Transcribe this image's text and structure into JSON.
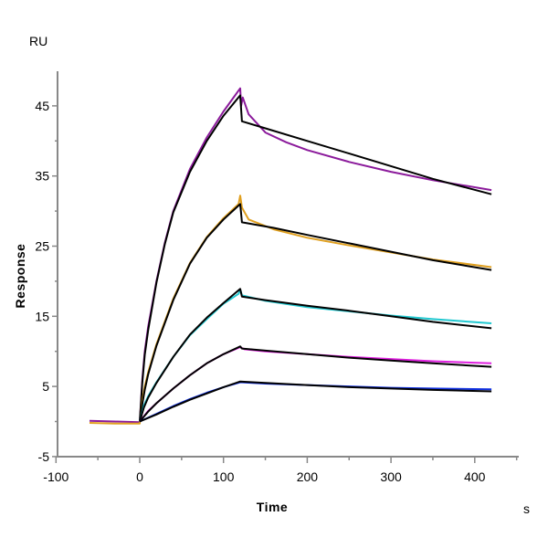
{
  "chart_data": {
    "type": "line",
    "title": "",
    "xlabel": "Time",
    "ylabel": "Response",
    "x_unit": "s",
    "y_unit": "RU",
    "xlim": [
      -100,
      450
    ],
    "ylim": [
      -5,
      50
    ],
    "x_ticks": [
      -100,
      0,
      100,
      200,
      300,
      400
    ],
    "y_ticks": [
      -5,
      5,
      15,
      25,
      35,
      45
    ],
    "grid": false,
    "legend": "none",
    "series": [
      {
        "role": "data",
        "color": "#8b1a9b",
        "points": [
          [
            -60,
            0.1
          ],
          [
            -30,
            0.0
          ],
          [
            0,
            -0.1
          ],
          [
            3,
            6
          ],
          [
            6,
            10
          ],
          [
            10,
            13.5
          ],
          [
            20,
            20
          ],
          [
            30,
            25.5
          ],
          [
            40,
            30
          ],
          [
            60,
            36
          ],
          [
            80,
            40.5
          ],
          [
            100,
            44.2
          ],
          [
            120,
            47.5
          ],
          [
            121,
            45
          ],
          [
            123,
            46.2
          ],
          [
            130,
            43.8
          ],
          [
            150,
            41.2
          ],
          [
            175,
            39.8
          ],
          [
            200,
            38.7
          ],
          [
            250,
            37.0
          ],
          [
            300,
            35.6
          ],
          [
            350,
            34.4
          ],
          [
            420,
            33.0
          ]
        ]
      },
      {
        "role": "fit",
        "color": "#000000",
        "points": [
          [
            0,
            0
          ],
          [
            3,
            5.5
          ],
          [
            6,
            9.5
          ],
          [
            10,
            13
          ],
          [
            20,
            19.8
          ],
          [
            30,
            25.3
          ],
          [
            40,
            29.8
          ],
          [
            60,
            35.6
          ],
          [
            80,
            40
          ],
          [
            100,
            43.6
          ],
          [
            120,
            46.5
          ],
          [
            122,
            42.8
          ],
          [
            150,
            41.8
          ],
          [
            200,
            40.0
          ],
          [
            250,
            38.2
          ],
          [
            300,
            36.4
          ],
          [
            350,
            34.6
          ],
          [
            420,
            32.4
          ]
        ]
      },
      {
        "role": "data",
        "color": "#e0a020",
        "points": [
          [
            -60,
            -0.2
          ],
          [
            -30,
            -0.3
          ],
          [
            0,
            -0.3
          ],
          [
            3,
            3
          ],
          [
            6,
            5
          ],
          [
            10,
            7
          ],
          [
            20,
            11
          ],
          [
            40,
            17.5
          ],
          [
            60,
            22.6
          ],
          [
            80,
            26.3
          ],
          [
            100,
            29
          ],
          [
            118,
            31
          ],
          [
            120,
            32.2
          ],
          [
            122,
            30.5
          ],
          [
            130,
            28.8
          ],
          [
            160,
            27.4
          ],
          [
            200,
            26.2
          ],
          [
            250,
            25.1
          ],
          [
            300,
            24.1
          ],
          [
            350,
            23.1
          ],
          [
            420,
            22.0
          ]
        ]
      },
      {
        "role": "fit",
        "color": "#000000",
        "points": [
          [
            0,
            0
          ],
          [
            3,
            2.5
          ],
          [
            6,
            4.5
          ],
          [
            10,
            6.7
          ],
          [
            20,
            10.8
          ],
          [
            40,
            17.3
          ],
          [
            60,
            22.5
          ],
          [
            80,
            26.2
          ],
          [
            100,
            28.8
          ],
          [
            120,
            31
          ],
          [
            122,
            28.4
          ],
          [
            160,
            27.6
          ],
          [
            200,
            26.6
          ],
          [
            250,
            25.4
          ],
          [
            300,
            24.2
          ],
          [
            350,
            23.0
          ],
          [
            420,
            21.6
          ]
        ]
      },
      {
        "role": "data",
        "color": "#20c8d0",
        "points": [
          [
            0,
            0
          ],
          [
            5,
            2.3
          ],
          [
            10,
            3.6
          ],
          [
            20,
            5.6
          ],
          [
            40,
            9.2
          ],
          [
            60,
            12.3
          ],
          [
            80,
            14.6
          ],
          [
            100,
            16.8
          ],
          [
            118,
            18.2
          ],
          [
            120,
            18.8
          ],
          [
            122,
            18
          ],
          [
            150,
            17.2
          ],
          [
            200,
            16.3
          ],
          [
            250,
            15.7
          ],
          [
            300,
            15.1
          ],
          [
            350,
            14.6
          ],
          [
            420,
            14.0
          ]
        ]
      },
      {
        "role": "fit",
        "color": "#000000",
        "points": [
          [
            0,
            0
          ],
          [
            5,
            2
          ],
          [
            10,
            3.4
          ],
          [
            20,
            5.5
          ],
          [
            40,
            9.2
          ],
          [
            60,
            12.4
          ],
          [
            80,
            14.8
          ],
          [
            100,
            16.9
          ],
          [
            120,
            18.9
          ],
          [
            122,
            17.8
          ],
          [
            150,
            17.3
          ],
          [
            200,
            16.5
          ],
          [
            250,
            15.8
          ],
          [
            300,
            15.0
          ],
          [
            350,
            14.2
          ],
          [
            420,
            13.3
          ]
        ]
      },
      {
        "role": "data",
        "color": "#e020e0",
        "points": [
          [
            0,
            0
          ],
          [
            10,
            1.5
          ],
          [
            20,
            2.6
          ],
          [
            40,
            4.7
          ],
          [
            60,
            6.6
          ],
          [
            80,
            8.3
          ],
          [
            100,
            9.6
          ],
          [
            120,
            10.6
          ],
          [
            125,
            10.3
          ],
          [
            150,
            10
          ],
          [
            200,
            9.6
          ],
          [
            250,
            9.2
          ],
          [
            300,
            8.9
          ],
          [
            350,
            8.6
          ],
          [
            420,
            8.3
          ]
        ]
      },
      {
        "role": "fit",
        "color": "#000000",
        "points": [
          [
            0,
            0
          ],
          [
            10,
            1.4
          ],
          [
            20,
            2.6
          ],
          [
            40,
            4.7
          ],
          [
            60,
            6.6
          ],
          [
            80,
            8.3
          ],
          [
            100,
            9.6
          ],
          [
            120,
            10.7
          ],
          [
            122,
            10.4
          ],
          [
            150,
            10.1
          ],
          [
            200,
            9.6
          ],
          [
            250,
            9.1
          ],
          [
            300,
            8.7
          ],
          [
            350,
            8.3
          ],
          [
            420,
            7.8
          ]
        ]
      },
      {
        "role": "data",
        "color": "#1030e0",
        "points": [
          [
            0,
            0
          ],
          [
            20,
            1.1
          ],
          [
            40,
            2.2
          ],
          [
            60,
            3.2
          ],
          [
            80,
            4.1
          ],
          [
            100,
            4.9
          ],
          [
            120,
            5.6
          ],
          [
            150,
            5.4
          ],
          [
            200,
            5.2
          ],
          [
            250,
            5.0
          ],
          [
            300,
            4.8
          ],
          [
            350,
            4.7
          ],
          [
            420,
            4.6
          ]
        ]
      },
      {
        "role": "fit",
        "color": "#000000",
        "points": [
          [
            0,
            0
          ],
          [
            20,
            1
          ],
          [
            40,
            2.1
          ],
          [
            60,
            3.1
          ],
          [
            80,
            4.0
          ],
          [
            100,
            4.9
          ],
          [
            120,
            5.7
          ],
          [
            150,
            5.5
          ],
          [
            200,
            5.2
          ],
          [
            250,
            4.9
          ],
          [
            300,
            4.7
          ],
          [
            350,
            4.5
          ],
          [
            420,
            4.3
          ]
        ]
      }
    ]
  }
}
